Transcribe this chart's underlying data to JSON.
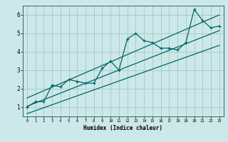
{
  "title": "",
  "xlabel": "Humidex (Indice chaleur)",
  "ylabel": "",
  "bg_color": "#cce8e8",
  "grid_color": "#aacccc",
  "line_color": "#006666",
  "xlim": [
    -0.5,
    23.5
  ],
  "ylim": [
    0.5,
    6.5
  ],
  "xticks": [
    0,
    1,
    2,
    3,
    4,
    5,
    6,
    7,
    8,
    9,
    10,
    11,
    12,
    13,
    14,
    15,
    16,
    17,
    18,
    19,
    20,
    21,
    22,
    23
  ],
  "yticks": [
    1,
    2,
    3,
    4,
    5,
    6
  ],
  "main_x": [
    0,
    1,
    2,
    3,
    4,
    5,
    6,
    7,
    8,
    9,
    10,
    11,
    12,
    13,
    14,
    15,
    16,
    17,
    18,
    19,
    20,
    21,
    22,
    23
  ],
  "main_y": [
    1.0,
    1.3,
    1.3,
    2.2,
    2.1,
    2.5,
    2.4,
    2.3,
    2.3,
    3.1,
    3.5,
    3.0,
    4.7,
    5.0,
    4.6,
    4.5,
    4.2,
    4.2,
    4.1,
    4.5,
    6.3,
    5.7,
    5.3,
    5.4
  ],
  "line1_x": [
    0,
    23
  ],
  "line1_y": [
    1.05,
    5.15
  ],
  "line2_x": [
    0,
    23
  ],
  "line2_y": [
    1.5,
    6.0
  ],
  "line3_x": [
    0,
    23
  ],
  "line3_y": [
    0.65,
    4.35
  ]
}
